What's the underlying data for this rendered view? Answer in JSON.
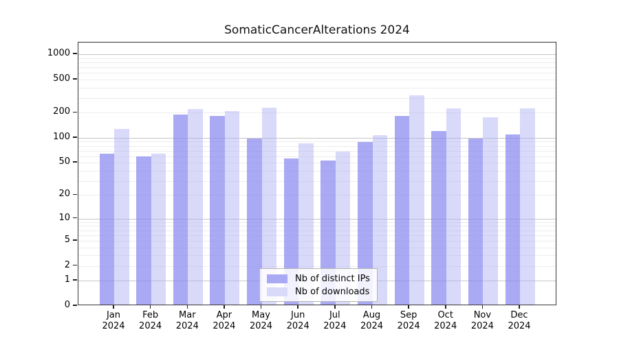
{
  "title": "SomaticCancerAlterations 2024",
  "chart_data": {
    "type": "bar",
    "title": "SomaticCancerAlterations 2024",
    "x_categories": [
      "Jan",
      "Feb",
      "Mar",
      "Apr",
      "May",
      "Jun",
      "Jul",
      "Aug",
      "Sep",
      "Oct",
      "Nov",
      "Dec"
    ],
    "x_year_label": "2024",
    "series": [
      {
        "name": "Nb of distinct IPs",
        "color": "#a9a9f4",
        "fill": "rgba(132,132,239,0.70)",
        "values": [
          62,
          57,
          183,
          178,
          95,
          54,
          51,
          86,
          175,
          116,
          94,
          105
        ]
      },
      {
        "name": "Nb of downloads",
        "color": "#d9d9fa",
        "fill": "rgba(170,170,244,0.45)",
        "values": [
          122,
          62,
          215,
          200,
          222,
          83,
          66,
          104,
          310,
          216,
          170,
          216
        ]
      }
    ],
    "y_scale": "log1p",
    "y_ticks": [
      0,
      1,
      2,
      5,
      10,
      20,
      50,
      100,
      200,
      500,
      1000
    ],
    "ylim": [
      0,
      1380
    ],
    "grid": true,
    "legend_position": "bottom-center",
    "xlabel": "",
    "ylabel": ""
  }
}
